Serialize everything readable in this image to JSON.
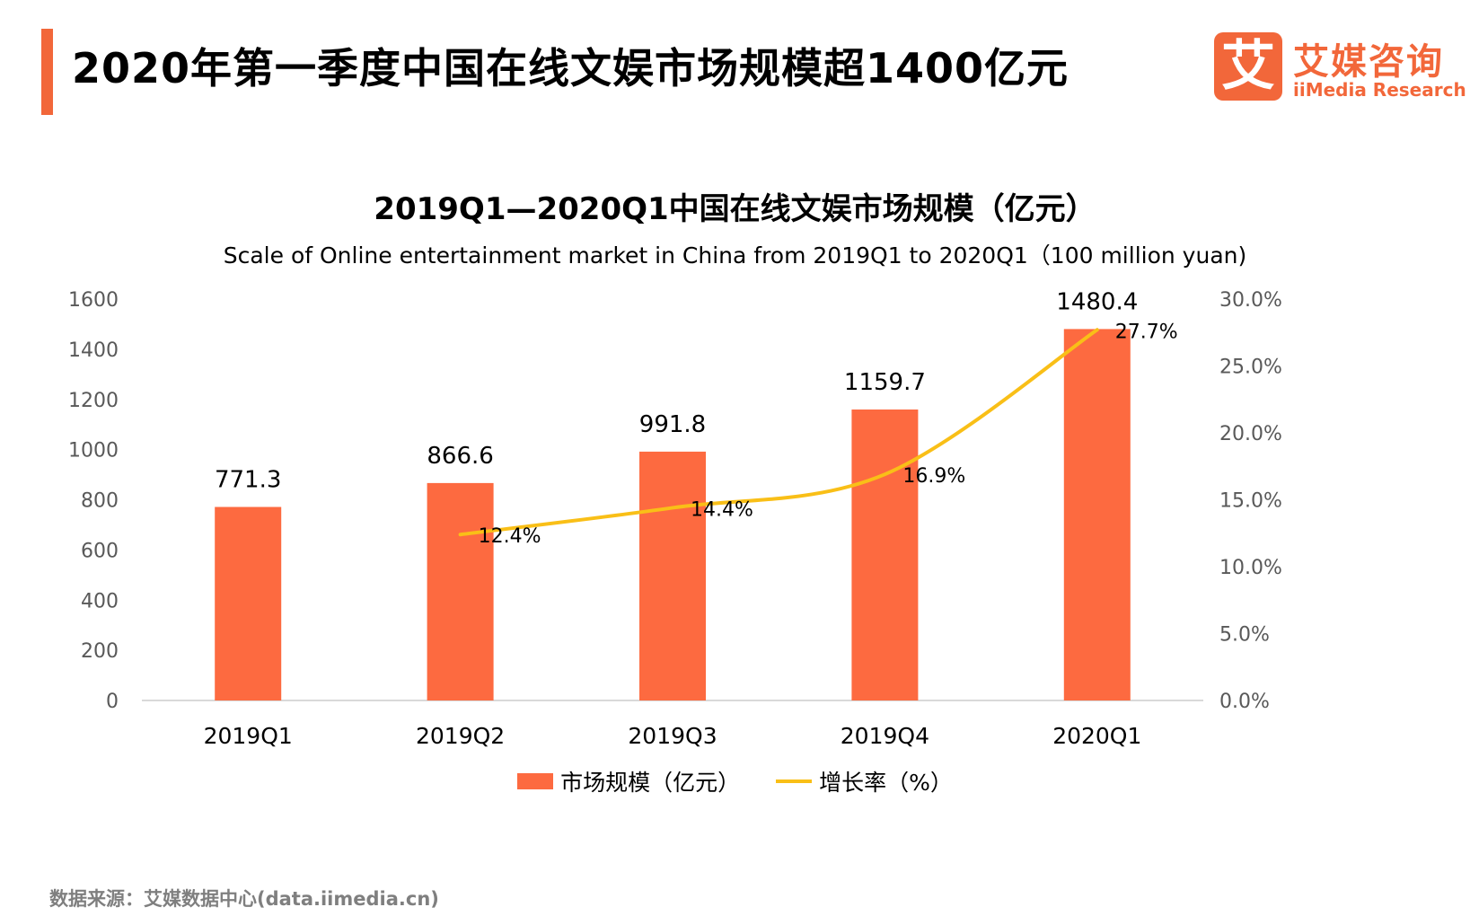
{
  "page": {
    "headline": "2020年第一季度中国在线文娱市场规模超1400亿元",
    "logo": {
      "mark": "艾",
      "name_cn": "艾媒咨询",
      "name_en": "iiMedia Research"
    },
    "source": "数据来源：艾媒数据中心(data.iimedia.cn)"
  },
  "colors": {
    "accent": "#f2673a",
    "bar": "#fd6a40",
    "line": "#f9bf17",
    "axis": "#d9d9d9",
    "muted": "#595959"
  },
  "chart_data": {
    "type": "bar",
    "title": "2019Q1—2020Q1中国在线文娱市场规模（亿元）",
    "subtitle": "Scale of Online entertainment market in China from 2019Q1 to 2020Q1（100  million yuan)",
    "categories": [
      "2019Q1",
      "2019Q2",
      "2019Q3",
      "2019Q4",
      "2020Q1"
    ],
    "series": [
      {
        "name": "市场规模（亿元）",
        "type": "bar",
        "axis": "left",
        "values": [
          771.3,
          866.6,
          991.8,
          1159.7,
          1480.4
        ],
        "labels": [
          "771.3",
          "866.6",
          "991.8",
          "1159.7",
          "1480.4"
        ]
      },
      {
        "name": "增长率（%）",
        "type": "line",
        "axis": "right",
        "values": [
          null,
          12.4,
          14.4,
          16.9,
          27.7
        ],
        "labels": [
          null,
          "12.4%",
          "14.4%",
          "16.9%",
          "27.7%"
        ]
      }
    ],
    "y_left": {
      "range": [
        0,
        1600
      ],
      "ticks": [
        0,
        200,
        400,
        600,
        800,
        1000,
        1200,
        1400,
        1600
      ]
    },
    "y_right": {
      "range": [
        0,
        30
      ],
      "ticks": [
        "0.0%",
        "5.0%",
        "10.0%",
        "15.0%",
        "20.0%",
        "25.0%",
        "30.0%"
      ],
      "tick_values": [
        0,
        5,
        10,
        15,
        20,
        25,
        30
      ]
    },
    "legend": {
      "position": "bottom",
      "items": [
        "市场规模（亿元）",
        "增长率（%）"
      ]
    },
    "grid": false
  }
}
